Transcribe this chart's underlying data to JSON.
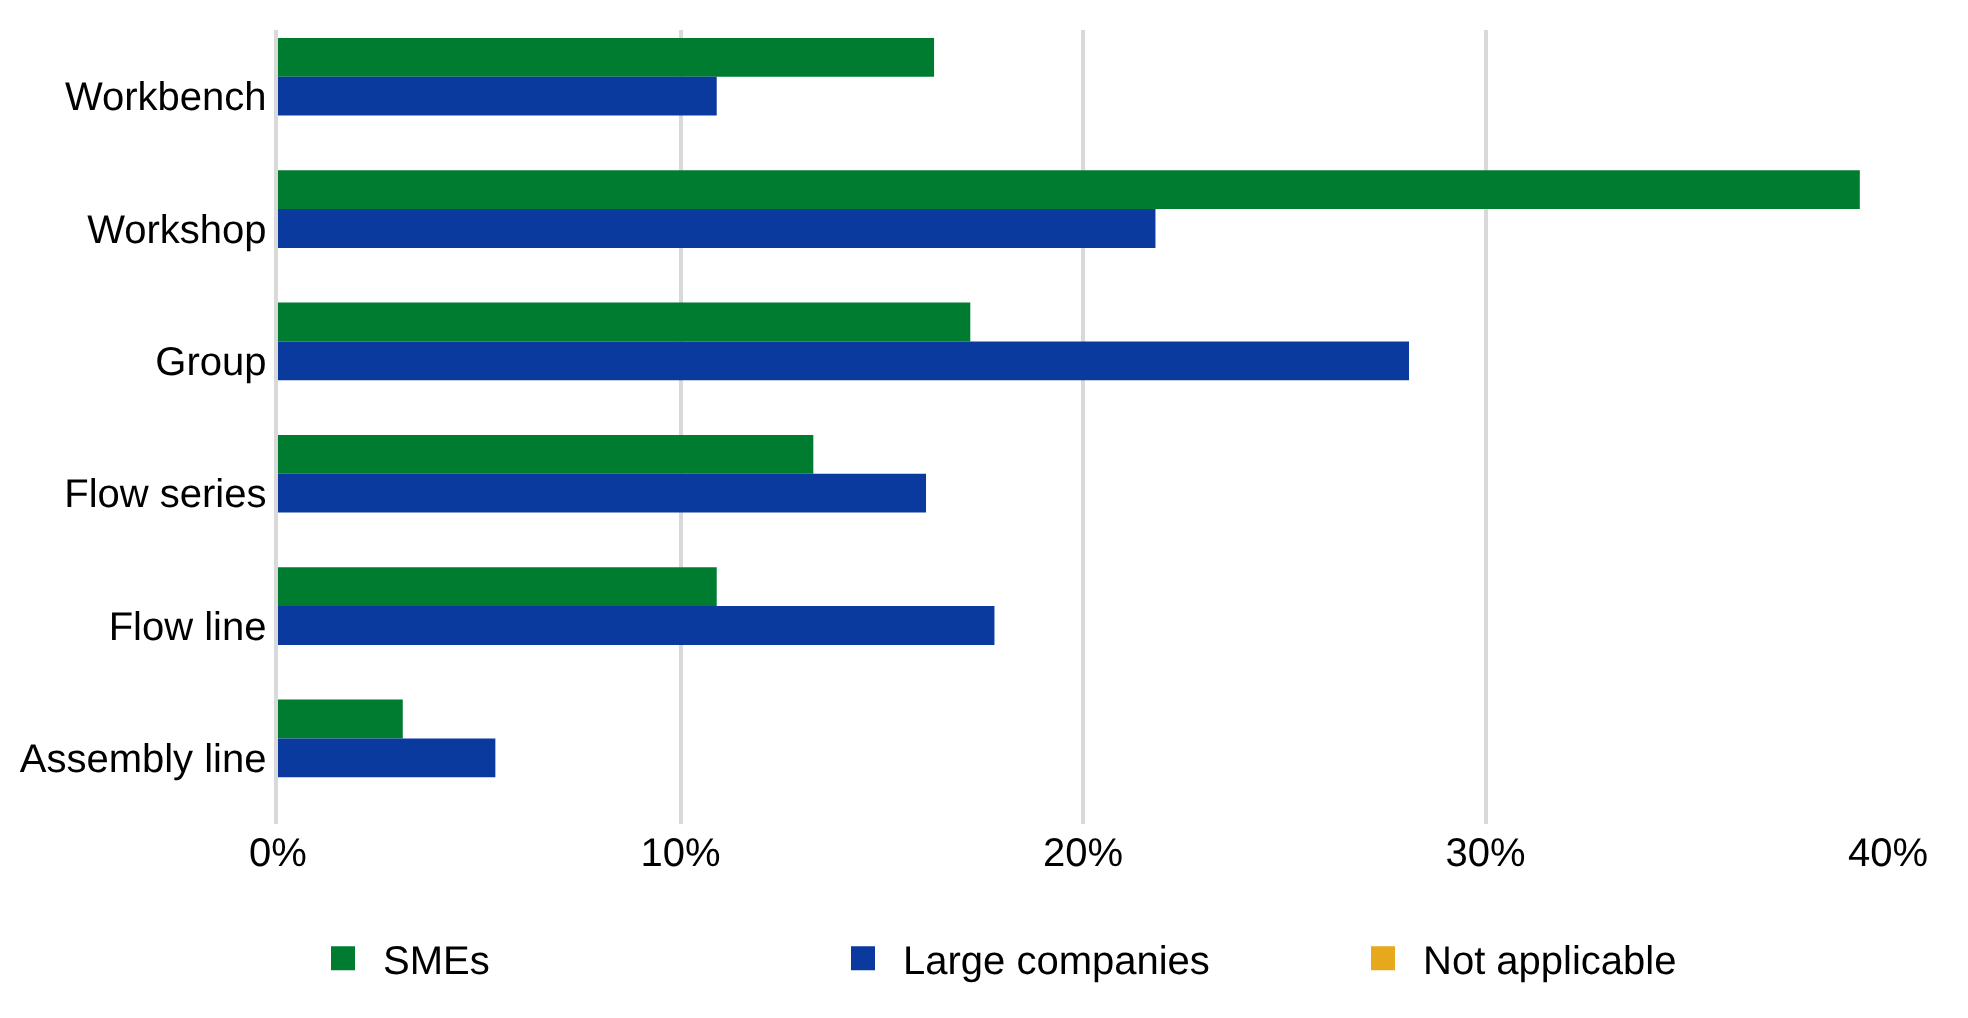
{
  "chart_data": {
    "type": "bar",
    "orientation": "horizontal",
    "categories": [
      "Workbench",
      "Workshop",
      "Group",
      "Flow series",
      "Flow line",
      "Assembly line"
    ],
    "series": [
      {
        "name": "SMEs",
        "color": "#007c30",
        "values": [
          16.3,
          39.3,
          17.2,
          13.3,
          10.9,
          3.1
        ]
      },
      {
        "name": "Large companies",
        "color": "#0a3a9e",
        "values": [
          10.9,
          21.8,
          28.1,
          16.1,
          17.8,
          5.4
        ]
      },
      {
        "name": "Not applicable",
        "color": "#e8a81c",
        "values": [
          null,
          null,
          null,
          null,
          null,
          null
        ]
      }
    ],
    "xlim": [
      0,
      40
    ],
    "xticks": [
      {
        "value": 0,
        "label": "0%"
      },
      {
        "value": 10,
        "label": "10%"
      },
      {
        "value": 20,
        "label": "20%"
      },
      {
        "value": 30,
        "label": "30%"
      },
      {
        "value": 40,
        "label": "40%"
      }
    ],
    "grid": "x",
    "legend": "bottom"
  }
}
